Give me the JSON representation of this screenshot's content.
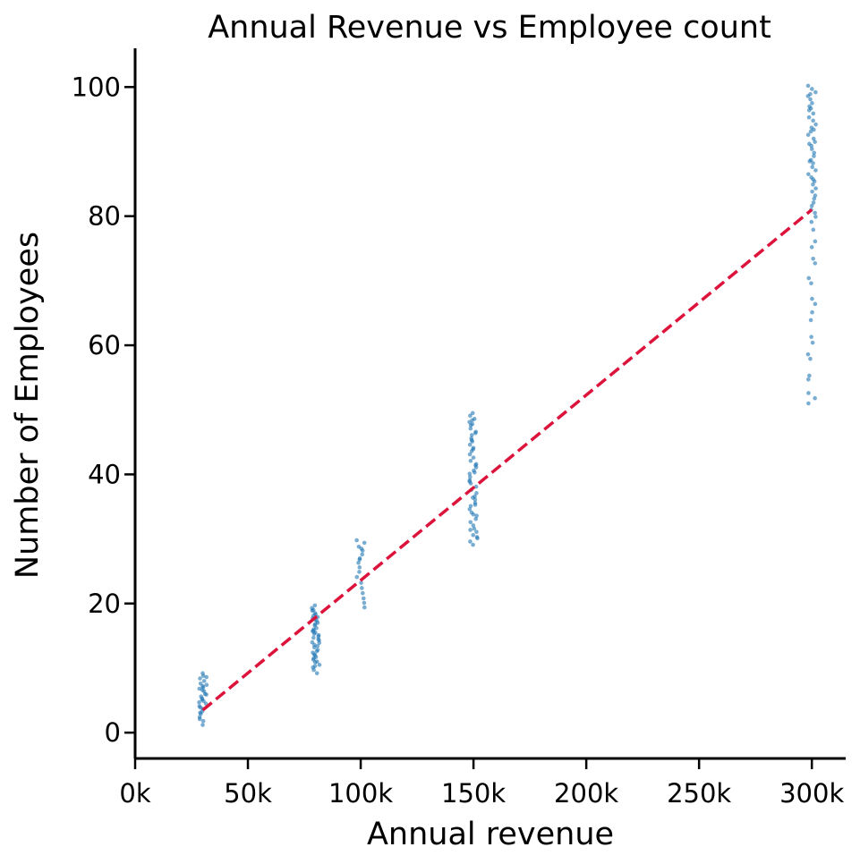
{
  "chart_data": {
    "type": "scatter",
    "title": "Annual Revenue vs Employee count",
    "xlabel": "Annual revenue",
    "ylabel": "Number of Employees",
    "xlim": [
      0,
      315000
    ],
    "ylim": [
      -4,
      106
    ],
    "x_ticks": [
      {
        "value": 0,
        "label": "0k"
      },
      {
        "value": 50000,
        "label": "50k"
      },
      {
        "value": 100000,
        "label": "100k"
      },
      {
        "value": 150000,
        "label": "150k"
      },
      {
        "value": 200000,
        "label": "200k"
      },
      {
        "value": 250000,
        "label": "250k"
      },
      {
        "value": 300000,
        "label": "300k"
      }
    ],
    "y_ticks": [
      {
        "value": 0,
        "label": "0"
      },
      {
        "value": 20,
        "label": "20"
      },
      {
        "value": 40,
        "label": "40"
      },
      {
        "value": 60,
        "label": "60"
      },
      {
        "value": 80,
        "label": "80"
      },
      {
        "value": 100,
        "label": "100"
      }
    ],
    "grid": false,
    "point_color": "#1f77b4",
    "trend_color": "#dc143c",
    "points": [
      [
        30000,
        1.2
      ],
      [
        30000,
        1.8
      ],
      [
        30000,
        2.4
      ],
      [
        30000,
        2.9
      ],
      [
        30000,
        3.3
      ],
      [
        30000,
        3.7
      ],
      [
        30000,
        4.1
      ],
      [
        30000,
        4.5
      ],
      [
        30000,
        4.9
      ],
      [
        30000,
        5.3
      ],
      [
        30000,
        5.6
      ],
      [
        30000,
        6.0
      ],
      [
        30000,
        6.4
      ],
      [
        30000,
        6.8
      ],
      [
        30000,
        7.2
      ],
      [
        30000,
        7.6
      ],
      [
        30000,
        8.0
      ],
      [
        30000,
        8.4
      ],
      [
        30000,
        8.8
      ],
      [
        30000,
        9.2
      ],
      [
        30000,
        3.1
      ],
      [
        30000,
        4.7
      ],
      [
        30000,
        5.9
      ],
      [
        30000,
        7.4
      ],
      [
        30000,
        2.1
      ],
      [
        30000,
        6.6
      ],
      [
        30000,
        8.6
      ],
      [
        30000,
        3.9
      ],
      [
        30000,
        5.1
      ],
      [
        30000,
        7.0
      ],
      [
        80000,
        9.2
      ],
      [
        80000,
        9.7
      ],
      [
        80000,
        10.1
      ],
      [
        80000,
        10.5
      ],
      [
        80000,
        10.9
      ],
      [
        80000,
        11.3
      ],
      [
        80000,
        11.7
      ],
      [
        80000,
        12.1
      ],
      [
        80000,
        12.4
      ],
      [
        80000,
        12.8
      ],
      [
        80000,
        13.2
      ],
      [
        80000,
        13.6
      ],
      [
        80000,
        14.0
      ],
      [
        80000,
        14.3
      ],
      [
        80000,
        14.7
      ],
      [
        80000,
        15.1
      ],
      [
        80000,
        15.5
      ],
      [
        80000,
        15.8
      ],
      [
        80000,
        16.2
      ],
      [
        80000,
        16.6
      ],
      [
        80000,
        17.0
      ],
      [
        80000,
        17.3
      ],
      [
        80000,
        17.7
      ],
      [
        80000,
        18.1
      ],
      [
        80000,
        18.5
      ],
      [
        80000,
        18.9
      ],
      [
        80000,
        19.3
      ],
      [
        80000,
        19.7
      ],
      [
        80000,
        11.0
      ],
      [
        80000,
        12.6
      ],
      [
        80000,
        13.9
      ],
      [
        80000,
        15.3
      ],
      [
        80000,
        16.8
      ],
      [
        80000,
        18.3
      ],
      [
        80000,
        10.3
      ],
      [
        80000,
        14.5
      ],
      [
        80000,
        17.5
      ],
      [
        80000,
        12.0
      ],
      [
        80000,
        16.0
      ],
      [
        80000,
        19.0
      ],
      [
        80000,
        13.4
      ],
      [
        80000,
        15.7
      ],
      [
        80000,
        11.5
      ],
      [
        80000,
        17.9
      ],
      [
        80000,
        14.9
      ],
      [
        100000,
        19.4
      ],
      [
        100000,
        20.1
      ],
      [
        100000,
        20.8
      ],
      [
        100000,
        21.6
      ],
      [
        100000,
        22.4
      ],
      [
        100000,
        23.2
      ],
      [
        100000,
        24.1
      ],
      [
        100000,
        24.9
      ],
      [
        100000,
        25.6
      ],
      [
        100000,
        26.3
      ],
      [
        100000,
        27.0
      ],
      [
        100000,
        27.6
      ],
      [
        100000,
        28.2
      ],
      [
        100000,
        28.8
      ],
      [
        100000,
        29.4
      ],
      [
        100000,
        29.8
      ],
      [
        100000,
        26.8
      ],
      [
        100000,
        28.5
      ],
      [
        150000,
        29.1
      ],
      [
        150000,
        29.6
      ],
      [
        150000,
        30.1
      ],
      [
        150000,
        30.6
      ],
      [
        150000,
        31.1
      ],
      [
        150000,
        31.6
      ],
      [
        150000,
        32.1
      ],
      [
        150000,
        32.6
      ],
      [
        150000,
        33.1
      ],
      [
        150000,
        33.6
      ],
      [
        150000,
        34.1
      ],
      [
        150000,
        34.6
      ],
      [
        150000,
        35.1
      ],
      [
        150000,
        35.6
      ],
      [
        150000,
        36.1
      ],
      [
        150000,
        36.6
      ],
      [
        150000,
        37.1
      ],
      [
        150000,
        37.6
      ],
      [
        150000,
        38.1
      ],
      [
        150000,
        38.6
      ],
      [
        150000,
        39.1
      ],
      [
        150000,
        39.6
      ],
      [
        150000,
        40.1
      ],
      [
        150000,
        40.6
      ],
      [
        150000,
        41.1
      ],
      [
        150000,
        41.6
      ],
      [
        150000,
        42.1
      ],
      [
        150000,
        42.6
      ],
      [
        150000,
        43.1
      ],
      [
        150000,
        43.6
      ],
      [
        150000,
        44.1
      ],
      [
        150000,
        44.6
      ],
      [
        150000,
        45.1
      ],
      [
        150000,
        45.6
      ],
      [
        150000,
        46.1
      ],
      [
        150000,
        46.6
      ],
      [
        150000,
        47.1
      ],
      [
        150000,
        47.6
      ],
      [
        150000,
        48.1
      ],
      [
        150000,
        48.6
      ],
      [
        150000,
        49.1
      ],
      [
        150000,
        49.5
      ],
      [
        150000,
        31.4
      ],
      [
        150000,
        33.8
      ],
      [
        150000,
        36.4
      ],
      [
        150000,
        38.9
      ],
      [
        150000,
        41.4
      ],
      [
        150000,
        43.9
      ],
      [
        150000,
        46.4
      ],
      [
        150000,
        48.4
      ],
      [
        150000,
        30.3
      ],
      [
        150000,
        35.3
      ],
      [
        150000,
        40.3
      ],
      [
        150000,
        45.3
      ],
      [
        150000,
        47.8
      ],
      [
        300000,
        51.0
      ],
      [
        300000,
        51.8
      ],
      [
        300000,
        52.6
      ],
      [
        300000,
        54.7
      ],
      [
        300000,
        55.3
      ],
      [
        300000,
        57.9
      ],
      [
        300000,
        58.6
      ],
      [
        300000,
        60.4
      ],
      [
        300000,
        61.3
      ],
      [
        300000,
        63.9
      ],
      [
        300000,
        65.1
      ],
      [
        300000,
        66.4
      ],
      [
        300000,
        67.2
      ],
      [
        300000,
        69.6
      ],
      [
        300000,
        70.4
      ],
      [
        300000,
        72.7
      ],
      [
        300000,
        73.4
      ],
      [
        300000,
        75.2
      ],
      [
        300000,
        76.1
      ],
      [
        300000,
        77.9
      ],
      [
        300000,
        79.1
      ],
      [
        300000,
        79.9
      ],
      [
        300000,
        80.5
      ],
      [
        300000,
        81.0
      ],
      [
        300000,
        81.6
      ],
      [
        300000,
        82.1
      ],
      [
        300000,
        82.7
      ],
      [
        300000,
        83.2
      ],
      [
        300000,
        83.8
      ],
      [
        300000,
        84.3
      ],
      [
        300000,
        84.9
      ],
      [
        300000,
        85.4
      ],
      [
        300000,
        86.0
      ],
      [
        300000,
        86.5
      ],
      [
        300000,
        87.1
      ],
      [
        300000,
        87.6
      ],
      [
        300000,
        88.2
      ],
      [
        300000,
        88.7
      ],
      [
        300000,
        89.3
      ],
      [
        300000,
        89.8
      ],
      [
        300000,
        90.4
      ],
      [
        300000,
        90.9
      ],
      [
        300000,
        91.5
      ],
      [
        300000,
        92.0
      ],
      [
        300000,
        92.6
      ],
      [
        300000,
        93.1
      ],
      [
        300000,
        93.7
      ],
      [
        300000,
        94.2
      ],
      [
        300000,
        94.8
      ],
      [
        300000,
        95.3
      ],
      [
        300000,
        95.9
      ],
      [
        300000,
        96.4
      ],
      [
        300000,
        97.0
      ],
      [
        300000,
        97.5
      ],
      [
        300000,
        98.1
      ],
      [
        300000,
        98.6
      ],
      [
        300000,
        99.2
      ],
      [
        300000,
        99.7
      ],
      [
        300000,
        100.2
      ],
      [
        300000,
        96.7
      ],
      [
        300000,
        91.2
      ],
      [
        300000,
        85.7
      ],
      [
        300000,
        88.5
      ],
      [
        300000,
        93.4
      ],
      [
        300000,
        98.9
      ]
    ],
    "trend_line": {
      "x": [
        30000,
        300000
      ],
      "y": [
        3.5,
        81.0
      ]
    }
  }
}
